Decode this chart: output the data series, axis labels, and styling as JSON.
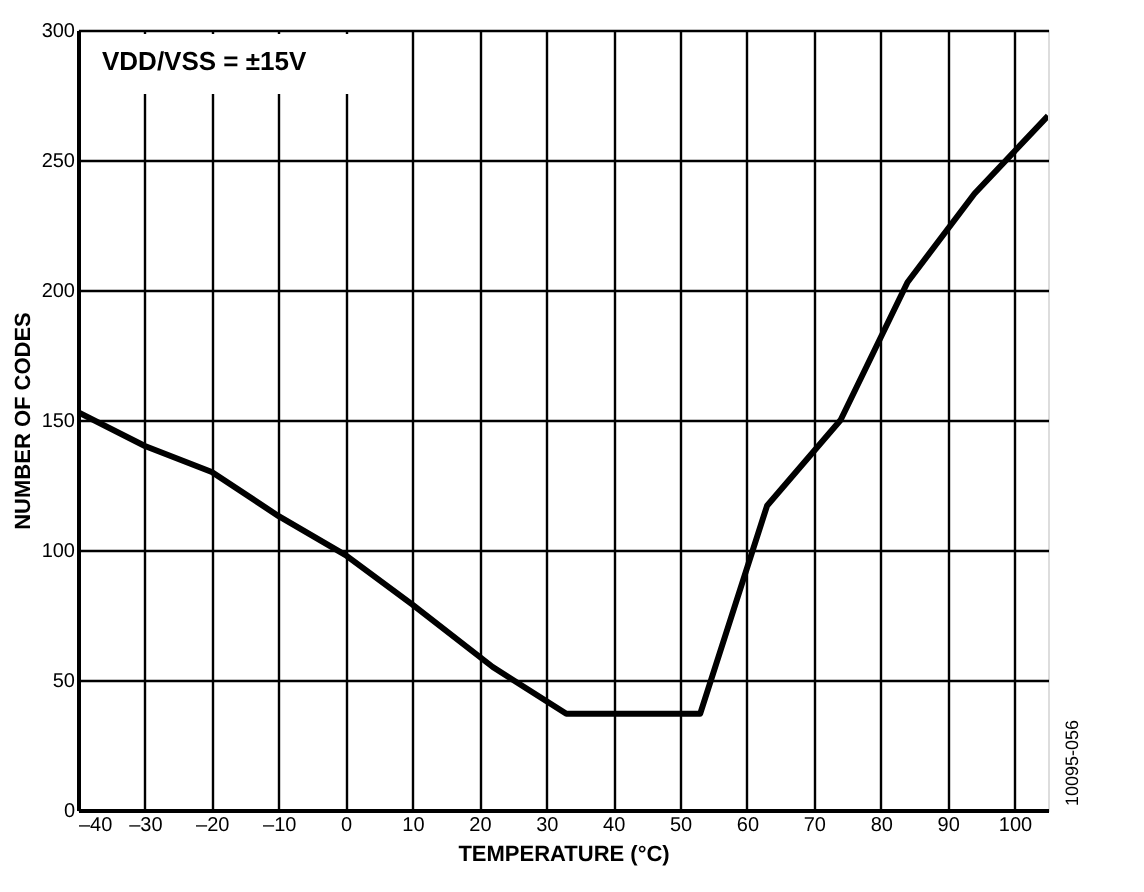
{
  "chart_data": {
    "type": "line",
    "xlabel": "TEMPERATURE (°C)",
    "ylabel": "NUMBER OF CODES",
    "x": [
      -40,
      -30,
      -20,
      -10,
      0,
      10,
      22,
      33,
      53,
      63,
      74,
      84,
      94,
      105
    ],
    "series": [
      {
        "color": "#000000",
        "values": [
          153,
          140,
          130,
          113,
          98,
          79,
          55,
          37,
          37,
          117,
          150,
          203,
          237,
          267
        ]
      }
    ],
    "xlim": [
      -40,
      105
    ],
    "xticks": [
      {
        "value": -40,
        "label": "–40"
      },
      {
        "value": -30,
        "label": "–30"
      },
      {
        "value": -20,
        "label": "–20"
      },
      {
        "value": -10,
        "label": "–10"
      },
      0,
      10,
      20,
      30,
      40,
      50,
      60,
      70,
      80,
      90,
      100
    ],
    "ylim": [
      0,
      300
    ],
    "yticks": [
      0,
      50,
      100,
      150,
      200,
      250,
      300
    ],
    "grid": true,
    "marker": "none",
    "line_style": "solid",
    "legend": false,
    "annotations": [
      "VDD/VSS = ±15V",
      "10095-056"
    ]
  }
}
